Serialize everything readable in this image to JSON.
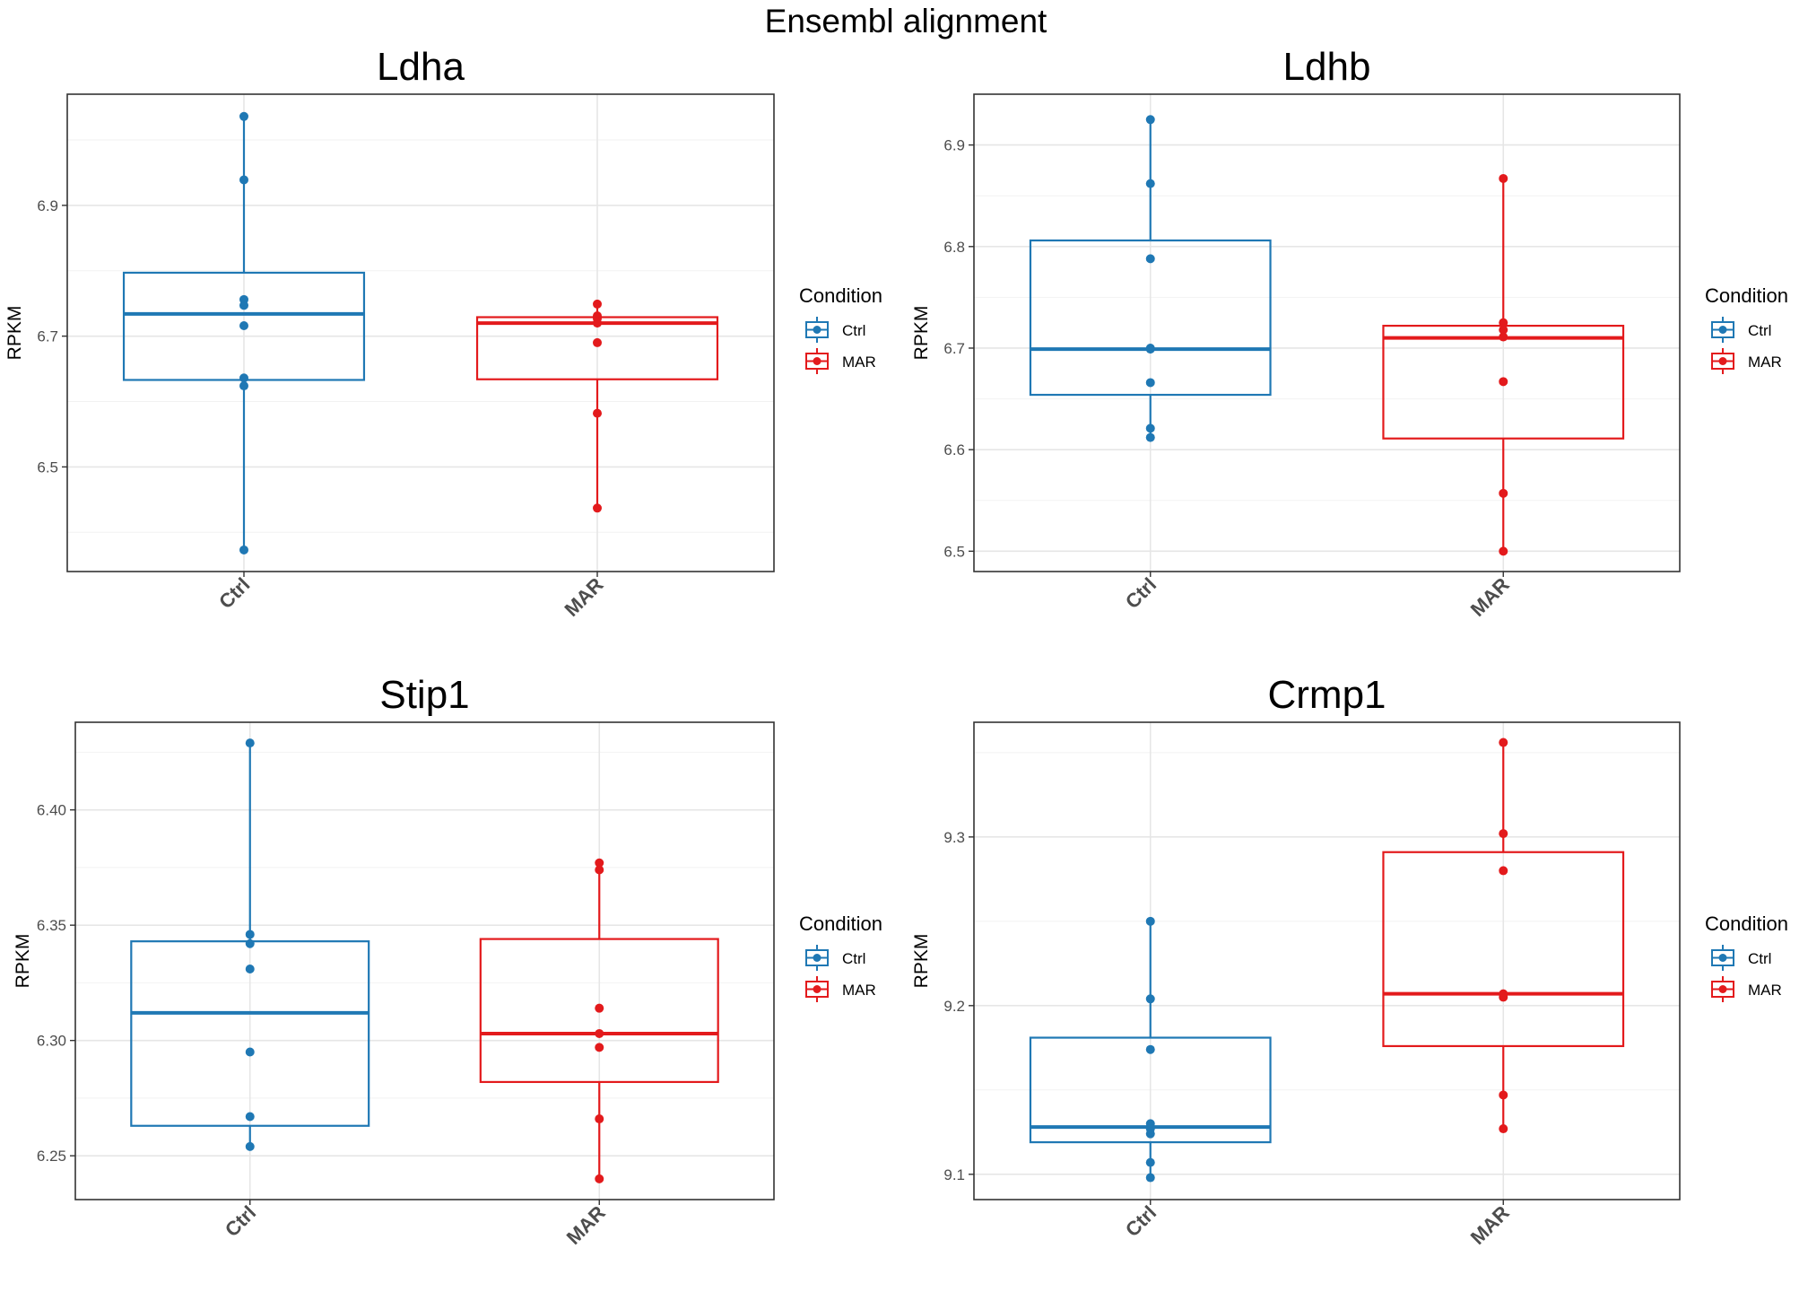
{
  "figure_title": "Ensembl alignment",
  "chart_data": [
    {
      "type": "box",
      "title": "Ldha",
      "ylabel": "RPKM",
      "xlabel": "",
      "categories": [
        "Ctrl",
        "MAR"
      ],
      "yticks": [
        6.5,
        6.7,
        6.9
      ],
      "ylim": [
        6.34,
        7.07
      ],
      "grid": true,
      "legend": {
        "title": "Condition",
        "placement": "right",
        "entries": [
          "Ctrl",
          "MAR"
        ]
      },
      "colors": {
        "Ctrl": "#1f78b4",
        "MAR": "#e31a1c"
      },
      "series": [
        {
          "category": "Ctrl",
          "box": {
            "q1": 6.633,
            "median": 6.734,
            "q3": 6.797
          },
          "points": [
            7.036,
            6.939,
            6.756,
            6.747,
            6.716,
            6.636,
            6.624,
            6.373
          ]
        },
        {
          "category": "MAR",
          "box": {
            "q1": 6.634,
            "median": 6.72,
            "q3": 6.729
          },
          "points": [
            6.749,
            6.731,
            6.727,
            6.72,
            6.69,
            6.582,
            6.437
          ]
        }
      ]
    },
    {
      "type": "box",
      "title": "Ldhb",
      "ylabel": "RPKM",
      "xlabel": "",
      "categories": [
        "Ctrl",
        "MAR"
      ],
      "yticks": [
        6.5,
        6.6,
        6.7,
        6.8,
        6.9
      ],
      "ylim": [
        6.48,
        6.95
      ],
      "grid": true,
      "legend": {
        "title": "Condition",
        "placement": "right",
        "entries": [
          "Ctrl",
          "MAR"
        ]
      },
      "colors": {
        "Ctrl": "#1f78b4",
        "MAR": "#e31a1c"
      },
      "series": [
        {
          "category": "Ctrl",
          "box": {
            "q1": 6.654,
            "median": 6.699,
            "q3": 6.806
          },
          "points": [
            6.925,
            6.862,
            6.788,
            6.7,
            6.699,
            6.666,
            6.621,
            6.612
          ]
        },
        {
          "category": "MAR",
          "box": {
            "q1": 6.611,
            "median": 6.71,
            "q3": 6.722
          },
          "points": [
            6.867,
            6.725,
            6.718,
            6.711,
            6.667,
            6.557,
            6.5
          ]
        }
      ]
    },
    {
      "type": "box",
      "title": "Stip1",
      "ylabel": "RPKM",
      "xlabel": "",
      "categories": [
        "Ctrl",
        "MAR"
      ],
      "yticks": [
        6.25,
        6.3,
        6.35,
        6.4
      ],
      "ylim": [
        6.231,
        6.438
      ],
      "grid": true,
      "legend": {
        "title": "Condition",
        "placement": "right",
        "entries": [
          "Ctrl",
          "MAR"
        ]
      },
      "colors": {
        "Ctrl": "#1f78b4",
        "MAR": "#e31a1c"
      },
      "series": [
        {
          "category": "Ctrl",
          "box": {
            "q1": 6.263,
            "median": 6.312,
            "q3": 6.343
          },
          "points": [
            6.429,
            6.346,
            6.342,
            6.331,
            6.295,
            6.267,
            6.254
          ]
        },
        {
          "category": "MAR",
          "box": {
            "q1": 6.282,
            "median": 6.303,
            "q3": 6.344
          },
          "points": [
            6.377,
            6.374,
            6.314,
            6.303,
            6.297,
            6.266,
            6.24
          ]
        }
      ]
    },
    {
      "type": "box",
      "title": "Crmp1",
      "ylabel": "RPKM",
      "xlabel": "",
      "categories": [
        "Ctrl",
        "MAR"
      ],
      "yticks": [
        9.1,
        9.2,
        9.3
      ],
      "ylim": [
        9.085,
        9.368
      ],
      "grid": true,
      "legend": {
        "title": "Condition",
        "placement": "right",
        "entries": [
          "Ctrl",
          "MAR"
        ]
      },
      "colors": {
        "Ctrl": "#1f78b4",
        "MAR": "#e31a1c"
      },
      "series": [
        {
          "category": "Ctrl",
          "box": {
            "q1": 9.119,
            "median": 9.128,
            "q3": 9.181
          },
          "points": [
            9.25,
            9.204,
            9.174,
            9.13,
            9.127,
            9.124,
            9.107,
            9.098
          ]
        },
        {
          "category": "MAR",
          "box": {
            "q1": 9.176,
            "median": 9.207,
            "q3": 9.291
          },
          "points": [
            9.356,
            9.302,
            9.28,
            9.207,
            9.205,
            9.147,
            9.127
          ]
        }
      ]
    }
  ]
}
